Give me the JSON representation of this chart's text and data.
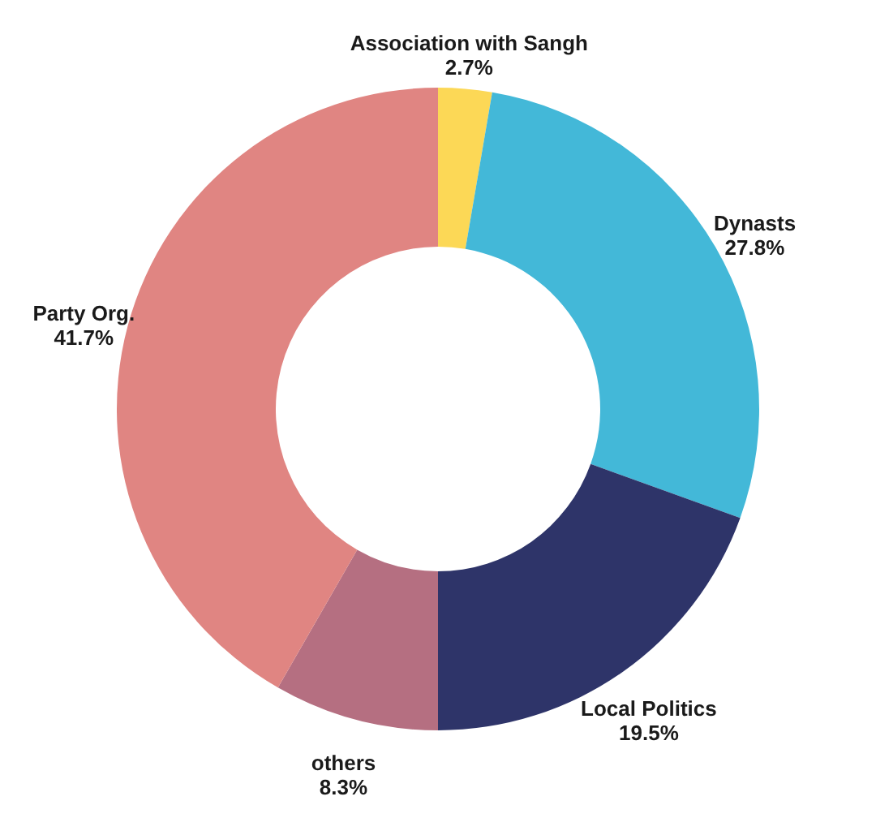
{
  "chart_data": {
    "type": "donut",
    "categories": [
      "Association with Sangh",
      "Dynasts",
      "Local Politics",
      "others",
      "Party Org."
    ],
    "values": [
      2.7,
      27.8,
      19.5,
      8.3,
      41.7
    ],
    "value_labels": [
      "2.7%",
      "27.8%",
      "19.5%",
      "8.3%",
      "41.7%"
    ],
    "colors": [
      "#fcd856",
      "#43b8d8",
      "#2e3469",
      "#b56f81",
      "#e08582"
    ]
  }
}
